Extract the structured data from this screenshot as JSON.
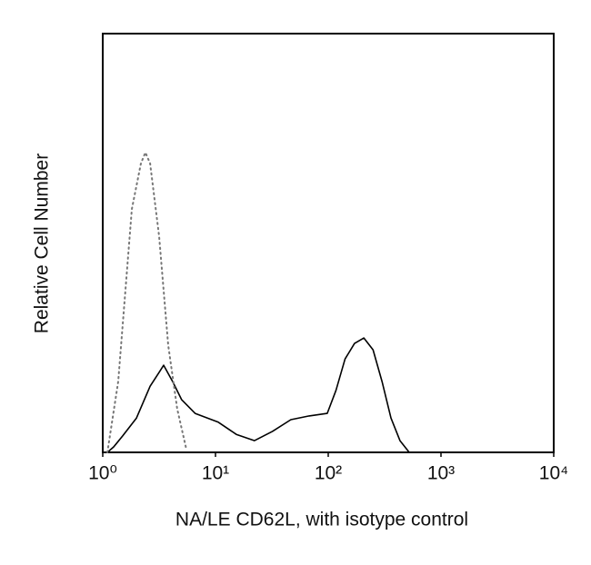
{
  "chart_data": {
    "type": "line",
    "x_label": "NA/LE CD62L, with isotype control",
    "y_label": "Relative Cell Number",
    "x_scale": "log",
    "xlim": [
      1,
      10000
    ],
    "xticks": [
      {
        "value": 1,
        "label": "10⁰"
      },
      {
        "value": 10,
        "label": "10¹"
      },
      {
        "value": 100,
        "label": "10²"
      },
      {
        "value": 1000,
        "label": "10³"
      },
      {
        "value": 10000,
        "label": "10⁴"
      }
    ],
    "ylim": [
      0,
      100
    ],
    "series": [
      {
        "color": "#000000",
        "linestyle": "solid",
        "x": [
          1.1,
          1.25,
          1.5,
          1.99,
          2.63,
          3.16,
          3.47,
          4.17,
          5.0,
          6.6,
          10.6,
          15.3,
          22.2,
          32,
          46.6,
          67.7,
          98,
          117,
          141,
          171,
          207,
          250,
          300,
          360,
          433,
          523
        ],
        "values": [
          0,
          1.3,
          3.9,
          8.2,
          15.8,
          19.1,
          20.8,
          16.9,
          12.6,
          9.3,
          7.2,
          4.3,
          2.8,
          5.0,
          7.8,
          8.7,
          9.3,
          14.8,
          22.3,
          26.0,
          27.3,
          24.5,
          16.9,
          8.2,
          2.8,
          0
        ]
      },
      {
        "color": "#777777",
        "linestyle": "dotted",
        "x": [
          1.1,
          1.37,
          1.81,
          2.18,
          2.39,
          2.63,
          3.16,
          3.81,
          4.58,
          5.52
        ],
        "values": [
          0,
          16.9,
          58.1,
          69.0,
          71.6,
          69.0,
          51.6,
          25.6,
          10.4,
          0.7
        ]
      }
    ]
  }
}
